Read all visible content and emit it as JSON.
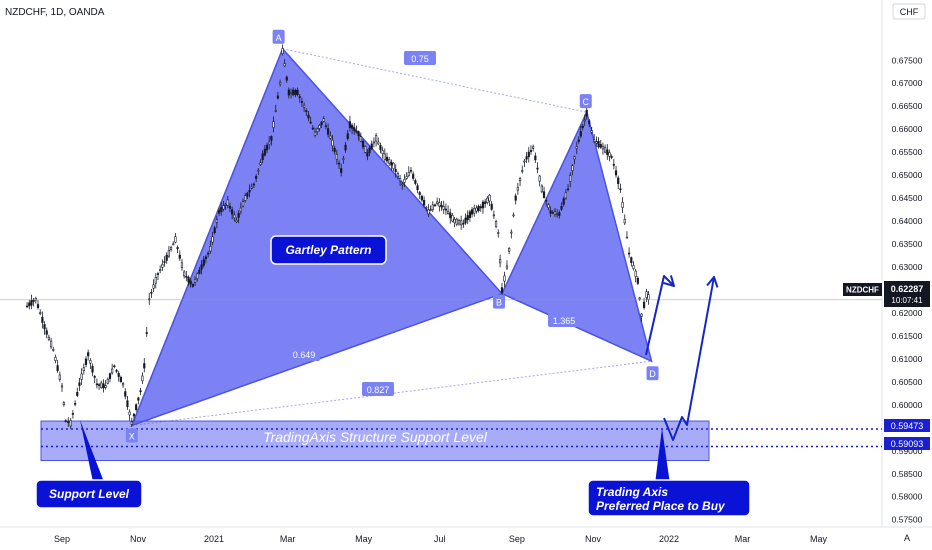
{
  "header": {
    "symbol_line": "NZDCHF, 1D, OANDA",
    "currency": "CHF",
    "auto_label": "A"
  },
  "price_badge": {
    "symbol": "NZDCHF",
    "price": "0.62287",
    "countdown": "10:07:41"
  },
  "colors": {
    "pattern_fill": "#5b63f0",
    "pattern_stroke": "#4a52e0",
    "zone_fill": "#8b90f6",
    "callout_bg": "#0a12d6",
    "arrow": "#1525c8",
    "candle": "#161a25",
    "level_dots": "#1a1fd0",
    "level_label_bg": "#1a1fd0"
  },
  "annotations": {
    "pattern_title": "Gartley Pattern",
    "zone_label": "TradingAxis Structure Support Level",
    "support_callout": "Support Level",
    "buy_callout_line1": "Trading Axis",
    "buy_callout_line2": "Preferred Place to Buy"
  },
  "points": [
    {
      "label": "X",
      "date": "2020-10-27",
      "price": 0.5955
    },
    {
      "label": "A",
      "date": "2021-02-25",
      "price": 0.6775
    },
    {
      "label": "B",
      "date": "2021-08-20",
      "price": 0.6242
    },
    {
      "label": "C",
      "date": "2021-10-27",
      "price": 0.6637
    },
    {
      "label": "D",
      "date": "2021-12-18",
      "price": 0.6095
    }
  ],
  "ratios": [
    "0.75",
    "0.649",
    "1.365",
    "0.827"
  ],
  "levels": [
    "0.59473",
    "0.59093"
  ],
  "chart_data": {
    "type": "line",
    "title": "NZDCHF, 1D, OANDA",
    "xlabel": "",
    "ylabel": "",
    "x_tick_labels": [
      "Sep",
      "Nov",
      "2021",
      "Mar",
      "May",
      "Jul",
      "Sep",
      "Nov",
      "2022",
      "Mar",
      "May"
    ],
    "y_tick_labels": [
      "0.67500",
      "0.67000",
      "0.66500",
      "0.66000",
      "0.65500",
      "0.65000",
      "0.64500",
      "0.64000",
      "0.63500",
      "0.63000",
      "0.62500",
      "0.62000",
      "0.61500",
      "0.61000",
      "0.60500",
      "0.60000",
      "0.59500",
      "0.59000",
      "0.58500",
      "0.58000",
      "0.57500"
    ],
    "ylim": [
      0.5745,
      0.6805
    ],
    "grid": false,
    "series": [
      {
        "name": "NZDCHF",
        "points": [
          [
            "2020-08-04",
            0.6215
          ],
          [
            "2020-08-11",
            0.623
          ],
          [
            "2020-08-18",
            0.617
          ],
          [
            "2020-08-25",
            0.612
          ],
          [
            "2020-09-01",
            0.604
          ],
          [
            "2020-09-04",
            0.5965
          ],
          [
            "2020-09-08",
            0.596
          ],
          [
            "2020-09-15",
            0.6045
          ],
          [
            "2020-09-22",
            0.611
          ],
          [
            "2020-09-29",
            0.6045
          ],
          [
            "2020-10-06",
            0.604
          ],
          [
            "2020-10-13",
            0.6085
          ],
          [
            "2020-10-20",
            0.6045
          ],
          [
            "2020-10-27",
            0.596
          ],
          [
            "2020-11-03",
            0.603
          ],
          [
            "2020-11-06",
            0.6085
          ],
          [
            "2020-11-10",
            0.623
          ],
          [
            "2020-11-17",
            0.6285
          ],
          [
            "2020-11-24",
            0.632
          ],
          [
            "2020-12-01",
            0.636
          ],
          [
            "2020-12-08",
            0.6285
          ],
          [
            "2020-12-15",
            0.626
          ],
          [
            "2020-12-22",
            0.63
          ],
          [
            "2020-12-29",
            0.634
          ],
          [
            "2021-01-05",
            0.642
          ],
          [
            "2021-01-12",
            0.644
          ],
          [
            "2021-01-19",
            0.64
          ],
          [
            "2021-01-26",
            0.645
          ],
          [
            "2021-02-02",
            0.648
          ],
          [
            "2021-02-09",
            0.654
          ],
          [
            "2021-02-16",
            0.658
          ],
          [
            "2021-02-23",
            0.67
          ],
          [
            "2021-02-25",
            0.677
          ],
          [
            "2021-03-02",
            0.668
          ],
          [
            "2021-03-09",
            0.668
          ],
          [
            "2021-03-16",
            0.664
          ],
          [
            "2021-03-23",
            0.659
          ],
          [
            "2021-03-30",
            0.662
          ],
          [
            "2021-04-06",
            0.657
          ],
          [
            "2021-04-13",
            0.651
          ],
          [
            "2021-04-20",
            0.661
          ],
          [
            "2021-04-27",
            0.659
          ],
          [
            "2021-05-04",
            0.6545
          ],
          [
            "2021-05-11",
            0.658
          ],
          [
            "2021-05-18",
            0.654
          ],
          [
            "2021-05-25",
            0.652
          ],
          [
            "2021-06-01",
            0.648
          ],
          [
            "2021-06-08",
            0.651
          ],
          [
            "2021-06-15",
            0.646
          ],
          [
            "2021-06-22",
            0.642
          ],
          [
            "2021-06-29",
            0.644
          ],
          [
            "2021-07-06",
            0.6425
          ],
          [
            "2021-07-13",
            0.64
          ],
          [
            "2021-07-20",
            0.6395
          ],
          [
            "2021-07-27",
            0.642
          ],
          [
            "2021-08-03",
            0.643
          ],
          [
            "2021-08-10",
            0.645
          ],
          [
            "2021-08-17",
            0.6375
          ],
          [
            "2021-08-20",
            0.625
          ],
          [
            "2021-08-24",
            0.63
          ],
          [
            "2021-08-31",
            0.645
          ],
          [
            "2021-09-07",
            0.653
          ],
          [
            "2021-09-14",
            0.656
          ],
          [
            "2021-09-21",
            0.647
          ],
          [
            "2021-09-28",
            0.642
          ],
          [
            "2021-10-05",
            0.6415
          ],
          [
            "2021-10-12",
            0.647
          ],
          [
            "2021-10-19",
            0.656
          ],
          [
            "2021-10-27",
            0.6635
          ],
          [
            "2021-11-02",
            0.6575
          ],
          [
            "2021-11-09",
            0.656
          ],
          [
            "2021-11-16",
            0.654
          ],
          [
            "2021-11-23",
            0.647
          ],
          [
            "2021-11-30",
            0.633
          ],
          [
            "2021-12-07",
            0.627
          ],
          [
            "2021-12-10",
            0.6195
          ],
          [
            "2021-12-14",
            0.624
          ],
          [
            "2021-12-17",
            0.6229
          ]
        ]
      }
    ]
  }
}
